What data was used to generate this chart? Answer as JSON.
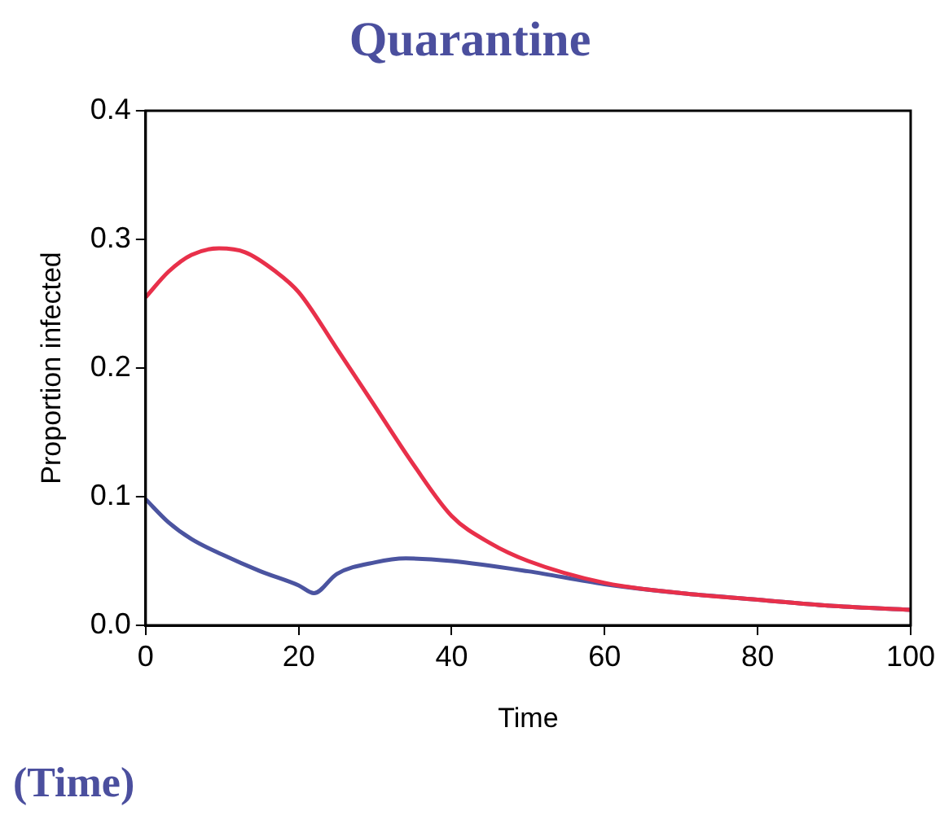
{
  "chart_data": {
    "type": "line",
    "title": "Quarantine",
    "xlabel": "Time",
    "ylabel": "Proportion infected",
    "annotations": [
      "(Time)"
    ],
    "xlim": [
      0,
      100
    ],
    "xticks": [
      0,
      20,
      40,
      60,
      80,
      100
    ],
    "ylim": [
      0,
      0.4
    ],
    "yticks": [
      {
        "value": 0,
        "label": "0.0"
      },
      0.1,
      0.2,
      0.3,
      0.4
    ],
    "marker": "none",
    "line_style": "solid",
    "series": [
      {
        "color": "#e8304a",
        "x": [
          0,
          3,
          6,
          9.6,
          13,
          17,
          20,
          25,
          30,
          35,
          40,
          45,
          50,
          60,
          70,
          80,
          90,
          100
        ],
        "values": [
          0.255,
          0.275,
          0.288,
          0.293,
          0.29,
          0.275,
          0.259,
          0.215,
          0.17,
          0.125,
          0.085,
          0.064,
          0.05,
          0.033,
          0.025,
          0.02,
          0.015,
          0.012
        ]
      },
      {
        "color": "#4b54a0",
        "x": [
          0,
          3,
          6,
          10,
          15,
          20,
          22,
          25,
          30,
          34,
          40,
          50,
          60,
          70,
          80,
          90,
          100
        ],
        "values": [
          0.098,
          0.08,
          0.067,
          0.055,
          0.042,
          0.031,
          0.025,
          0.04,
          0.049,
          0.052,
          0.05,
          0.042,
          0.032,
          0.025,
          0.02,
          0.015,
          0.012
        ]
      }
    ]
  }
}
